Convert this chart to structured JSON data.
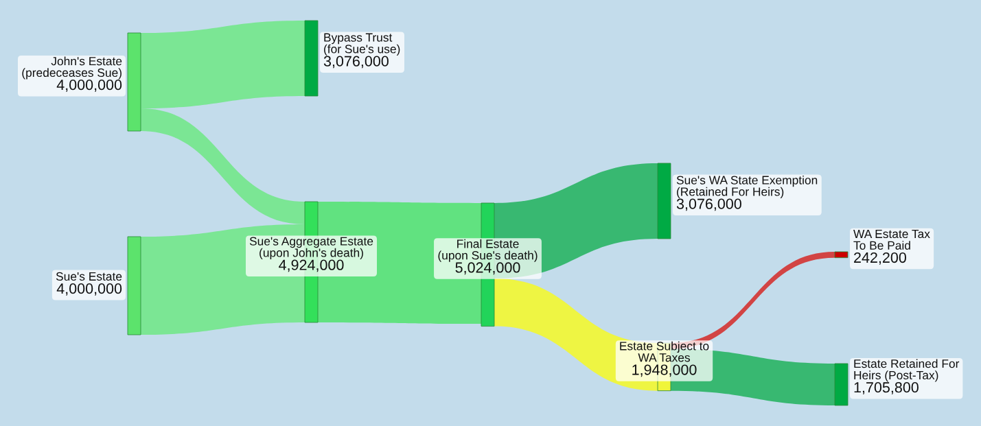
{
  "chart_data": {
    "type": "other",
    "categories": [
      "John's Estate\n(predeceases Sue)",
      "Sue's Estate",
      "Bypass Trust\n(for Sue's use)",
      "Sue's Aggregate Estate\n(upon John's death)",
      "Final Estate\n(upon Sue's death)",
      "Sue's WA State Exemption\n(Retained For Heirs)",
      "Estate Subject to\nWA Taxes",
      "WA Estate Tax\nTo Be Paid",
      "Estate Retained For\nHeirs (Post-Tax)"
    ],
    "values": [
      4000000,
      4000000,
      3076000,
      4924000,
      5024000,
      3076000,
      1948000,
      242200,
      1705800
    ],
    "value_labels": [
      "4,000,000",
      "4,000,000",
      "3,076,000",
      "4,924,000",
      "5,024,000",
      "3,076,000",
      "1,948,000",
      "242,200",
      "1,705,800"
    ]
  }
}
